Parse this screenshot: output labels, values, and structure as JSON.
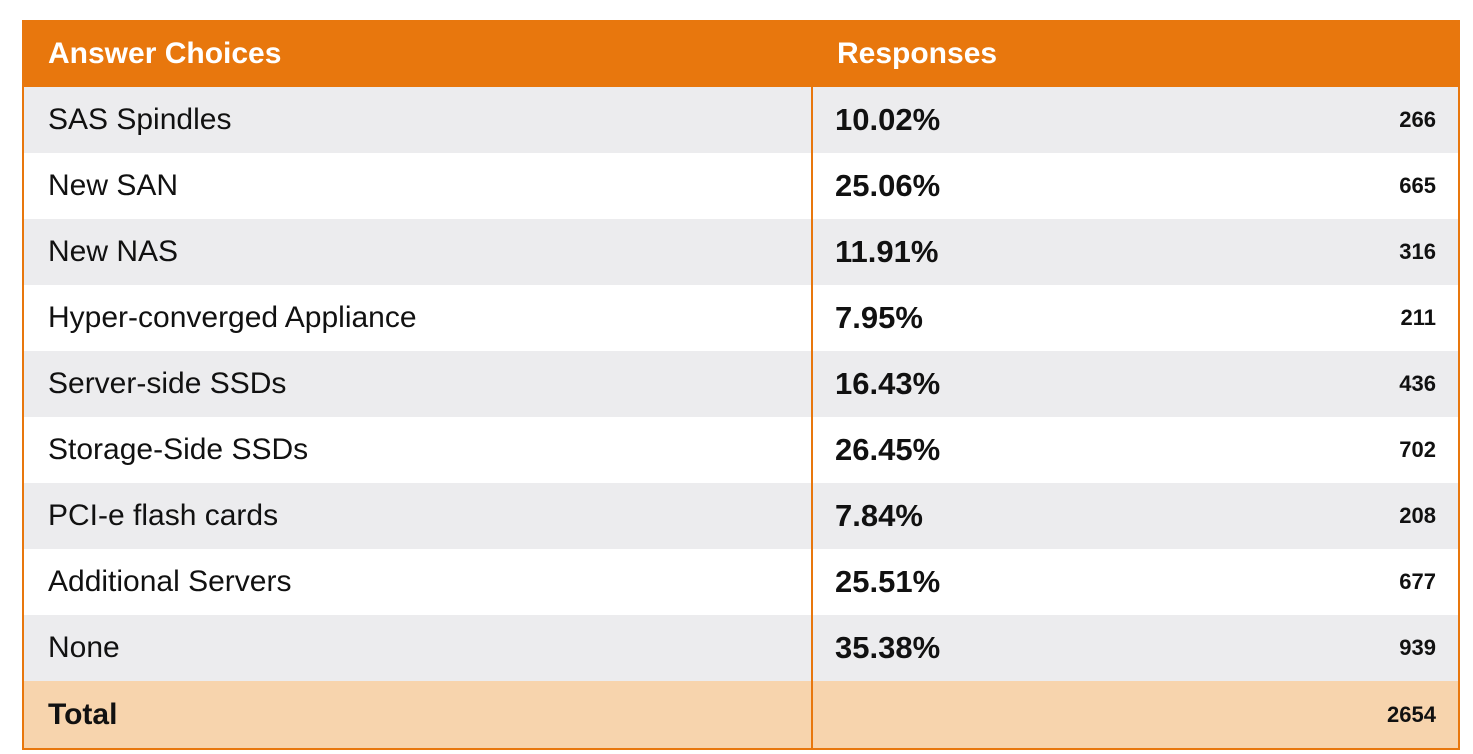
{
  "header": {
    "choices_label": "Answer Choices",
    "responses_label": "Responses"
  },
  "rows": [
    {
      "choice": "SAS Spindles",
      "percent": "10.02%",
      "count": "266"
    },
    {
      "choice": "New SAN",
      "percent": "25.06%",
      "count": "665"
    },
    {
      "choice": "New NAS",
      "percent": "11.91%",
      "count": "316"
    },
    {
      "choice": "Hyper-converged Appliance",
      "percent": "7.95%",
      "count": "211"
    },
    {
      "choice": "Server-side SSDs",
      "percent": "16.43%",
      "count": "436"
    },
    {
      "choice": "Storage-Side SSDs",
      "percent": "26.45%",
      "count": "702"
    },
    {
      "choice": "PCI-e flash cards",
      "percent": "7.84%",
      "count": "208"
    },
    {
      "choice": "Additional Servers",
      "percent": "25.51%",
      "count": "677"
    },
    {
      "choice": "None",
      "percent": "35.38%",
      "count": "939"
    }
  ],
  "total": {
    "label": "Total",
    "count": "2654"
  },
  "colors": {
    "accent": "#e8770d",
    "total_row": "#f7d4ad",
    "stripe": "#ececee"
  },
  "chart_data": {
    "type": "table",
    "columns": [
      "Answer Choices",
      "Responses"
    ],
    "categories": [
      "SAS Spindles",
      "New SAN",
      "New NAS",
      "Hyper-converged Appliance",
      "Server-side SSDs",
      "Storage-Side SSDs",
      "PCI-e flash cards",
      "Additional Servers",
      "None"
    ],
    "series": [
      {
        "name": "Responses",
        "values": [
          10.02,
          25.06,
          11.91,
          7.95,
          16.43,
          26.45,
          7.84,
          25.51,
          35.38
        ]
      },
      {
        "values": [
          266,
          665,
          316,
          211,
          436,
          702,
          208,
          677,
          939
        ]
      }
    ],
    "total": 2654
  }
}
